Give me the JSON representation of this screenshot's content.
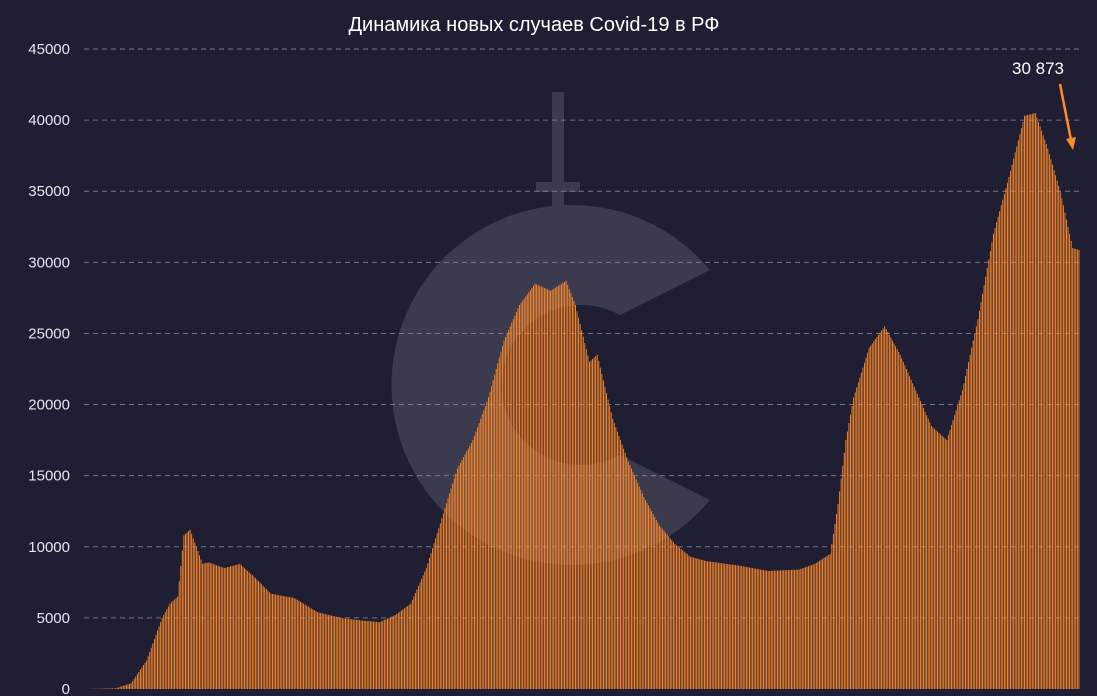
{
  "chart_data": {
    "type": "bar",
    "title": "Динамика новых случаев Covid-19 в РФ",
    "xlabel": "",
    "ylabel": "",
    "ylim": [
      0,
      45000
    ],
    "yticks": [
      0,
      5000,
      10000,
      15000,
      20000,
      25000,
      30000,
      35000,
      40000,
      45000
    ],
    "ytick_labels": [
      "0",
      "5000",
      "10000",
      "15000",
      "20000",
      "25000",
      "30000",
      "35000",
      "40000",
      "45000"
    ],
    "grid": true,
    "bar_color": "#ff8a2a",
    "series_keypoints": [
      [
        0,
        0
      ],
      [
        20,
        50
      ],
      [
        30,
        400
      ],
      [
        40,
        2000
      ],
      [
        50,
        5000
      ],
      [
        55,
        6000
      ],
      [
        60,
        6500
      ],
      [
        64,
        10800
      ],
      [
        68,
        11200
      ],
      [
        72,
        10000
      ],
      [
        76,
        8800
      ],
      [
        80,
        8900
      ],
      [
        90,
        8500
      ],
      [
        100,
        8800
      ],
      [
        110,
        7800
      ],
      [
        120,
        6700
      ],
      [
        135,
        6400
      ],
      [
        150,
        5400
      ],
      [
        165,
        5000
      ],
      [
        180,
        4800
      ],
      [
        190,
        4700
      ],
      [
        200,
        5200
      ],
      [
        210,
        6000
      ],
      [
        220,
        8500
      ],
      [
        230,
        12000
      ],
      [
        240,
        15500
      ],
      [
        250,
        17500
      ],
      [
        260,
        20500
      ],
      [
        270,
        24500
      ],
      [
        280,
        27000
      ],
      [
        290,
        28500
      ],
      [
        300,
        28000
      ],
      [
        310,
        28700
      ],
      [
        316,
        27000
      ],
      [
        325,
        23000
      ],
      [
        330,
        23500
      ],
      [
        340,
        19000
      ],
      [
        350,
        16000
      ],
      [
        360,
        13500
      ],
      [
        370,
        11500
      ],
      [
        380,
        10200
      ],
      [
        390,
        9300
      ],
      [
        400,
        9000
      ],
      [
        420,
        8700
      ],
      [
        440,
        8300
      ],
      [
        460,
        8400
      ],
      [
        470,
        8800
      ],
      [
        480,
        9500
      ],
      [
        485,
        13000
      ],
      [
        490,
        17500
      ],
      [
        495,
        20500
      ],
      [
        505,
        24000
      ],
      [
        515,
        25500
      ],
      [
        525,
        23500
      ],
      [
        535,
        21000
      ],
      [
        545,
        18500
      ],
      [
        555,
        17500
      ],
      [
        565,
        21000
      ],
      [
        575,
        26000
      ],
      [
        585,
        32000
      ],
      [
        595,
        36000
      ],
      [
        605,
        40300
      ],
      [
        612,
        40500
      ],
      [
        620,
        38000
      ],
      [
        628,
        35000
      ],
      [
        636,
        31000
      ],
      [
        640,
        30873
      ]
    ],
    "annotations": [
      {
        "text": "30 873",
        "value": 30873,
        "target": "last-bar"
      }
    ]
  }
}
